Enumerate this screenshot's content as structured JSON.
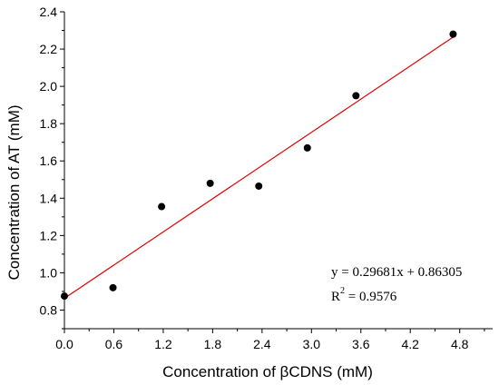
{
  "chart_data": {
    "type": "scatter",
    "xlabel": "Concentration of βCDNS (mM)",
    "ylabel": "Concentration of AT (mM)",
    "xlim": [
      0.0,
      5.2
    ],
    "ylim": [
      0.7,
      2.4
    ],
    "xticks": [
      "0.0",
      "0.6",
      "1.2",
      "1.8",
      "2.4",
      "3.0",
      "3.6",
      "4.2",
      "4.8"
    ],
    "xtick_values": [
      0.0,
      0.6,
      1.2,
      1.8,
      2.4,
      3.0,
      3.6,
      4.2,
      4.8
    ],
    "yticks": [
      "0.8",
      "1.0",
      "1.2",
      "1.4",
      "1.6",
      "1.8",
      "2.0",
      "2.2",
      "2.4"
    ],
    "ytick_values": [
      0.8,
      1.0,
      1.2,
      1.4,
      1.6,
      1.8,
      2.0,
      2.2,
      2.4
    ],
    "series": [
      {
        "x": [
          0.0,
          0.59,
          1.18,
          1.77,
          2.36,
          2.95,
          3.54,
          4.72
        ],
        "y": [
          0.875,
          0.92,
          1.355,
          1.48,
          1.465,
          1.67,
          1.95,
          2.28
        ],
        "color": "#000000"
      }
    ],
    "fit": {
      "slope": 0.29681,
      "intercept": 0.86305,
      "x_range": [
        0.0,
        4.72
      ],
      "color": "#e00000"
    },
    "annotation": {
      "equation": "y = 0.29681x + 0.86305",
      "r2_prefix": "R",
      "r2_sup": "2",
      "r2_suffix": " = 0.9576"
    },
    "grid": false,
    "legend": "none"
  }
}
